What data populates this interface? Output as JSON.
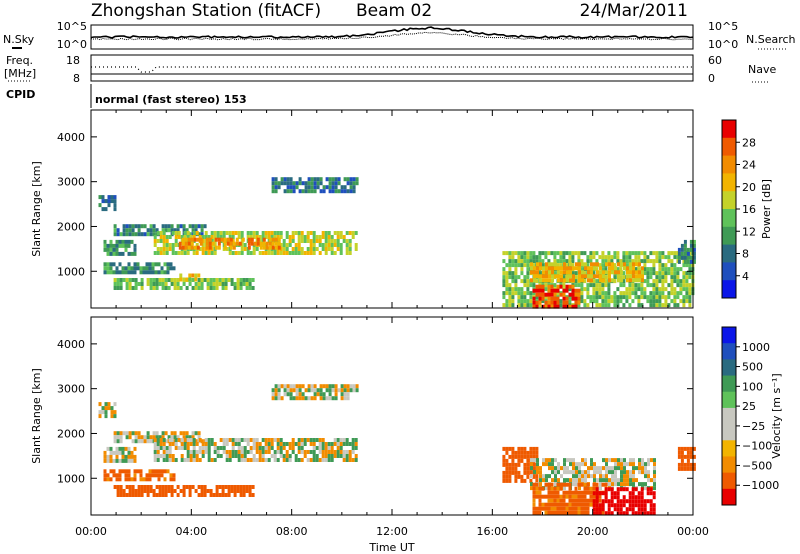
{
  "header": {
    "station": "Zhongshan Station (fitACF)",
    "beam": "Beam 02",
    "date": "24/Mar/2011"
  },
  "panel_labels": {
    "nsky": "N.Sky",
    "nsearch": "N.Search",
    "freq_line1": "Freq.",
    "freq_line2": "[MHz]",
    "nave": "Nave",
    "cpid": "CPID",
    "cpid_text": "normal (fast stereo) 153"
  },
  "noise_axis": {
    "left_top": "10^5",
    "left_bottom": "10^0",
    "right_top": "10^5",
    "right_bottom": "10^0"
  },
  "freq_axis": {
    "left_top": "18",
    "left_bottom": "8",
    "right_top": "60",
    "right_bottom": "0"
  },
  "chart_data": [
    {
      "type": "heatmap",
      "title": "",
      "xlabel": "Time UT",
      "ylabel": "Slant Range [km]",
      "x_ticks": [
        "00:00",
        "04:00",
        "08:00",
        "12:00",
        "16:00",
        "20:00",
        "00:00"
      ],
      "xlim_hours": [
        0,
        24
      ],
      "ylim_km": [
        180,
        4600
      ],
      "y_ticks": [
        1000,
        2000,
        3000,
        4000
      ],
      "colorbar": {
        "label": "Power [dB]",
        "ticks": [
          "4",
          "8",
          "12",
          "16",
          "20",
          "24",
          "28"
        ],
        "range": [
          0,
          30
        ],
        "colors": [
          "#0b16e8",
          "#1f4fbd",
          "#2a6b80",
          "#3f9a55",
          "#5fc25a",
          "#c4d22a",
          "#f2b400",
          "#f28c00",
          "#ef5a00",
          "#e80000"
        ]
      },
      "regions": [
        {
          "t": [
            0.3,
            0.9
          ],
          "r": [
            2400,
            2700
          ],
          "v": 8
        },
        {
          "t": [
            0.5,
            1.8
          ],
          "r": [
            1400,
            1700
          ],
          "v": 10
        },
        {
          "t": [
            0.9,
            4.5
          ],
          "r": [
            1850,
            2050
          ],
          "v": 9
        },
        {
          "t": [
            2.5,
            10.6
          ],
          "r": [
            1450,
            1900
          ],
          "v": 16
        },
        {
          "t": [
            3.5,
            7.5
          ],
          "r": [
            1550,
            1750
          ],
          "v": 22
        },
        {
          "t": [
            0.5,
            3.3
          ],
          "r": [
            950,
            1200
          ],
          "v": 10
        },
        {
          "t": [
            0.9,
            6.5
          ],
          "r": [
            600,
            850
          ],
          "v": 14
        },
        {
          "t": [
            3.4,
            4.3
          ],
          "r": [
            820,
            950
          ],
          "v": 18
        },
        {
          "t": [
            7.2,
            10.6
          ],
          "r": [
            2750,
            3100
          ],
          "v": 8
        },
        {
          "t": [
            16.4,
            24.0
          ],
          "r": [
            200,
            1450
          ],
          "v": 14
        },
        {
          "t": [
            17.5,
            22.0
          ],
          "r": [
            800,
            1200
          ],
          "v": 20
        },
        {
          "t": [
            17.6,
            19.4
          ],
          "r": [
            200,
            700
          ],
          "v": 26
        },
        {
          "t": [
            23.4,
            24.0
          ],
          "r": [
            1200,
            1700
          ],
          "v": 9
        }
      ]
    },
    {
      "type": "heatmap",
      "title": "",
      "xlabel": "Time UT",
      "ylabel": "Slant Range [km]",
      "x_ticks": [
        "00:00",
        "04:00",
        "08:00",
        "12:00",
        "16:00",
        "20:00",
        "00:00"
      ],
      "xlim_hours": [
        0,
        24
      ],
      "ylim_km": [
        180,
        4600
      ],
      "y_ticks": [
        1000,
        2000,
        3000,
        4000
      ],
      "colorbar": {
        "label": "Velocity [m s⁻¹]",
        "ticks": [
          "1000",
          "500",
          "100",
          "25",
          "−25",
          "−100",
          "−500",
          "−1000"
        ],
        "range": [
          -1000,
          1000
        ],
        "colors": [
          "#e80000",
          "#ef5a00",
          "#f28c00",
          "#f2b400",
          "#c8c8c0",
          "#c8c8c0",
          "#5fc25a",
          "#3f9a55",
          "#2a6b80",
          "#1f4fbd",
          "#0b16e8"
        ]
      },
      "regions": [
        {
          "t": [
            0.3,
            0.9
          ],
          "r": [
            2400,
            2700
          ],
          "v": 0
        },
        {
          "t": [
            0.5,
            1.8
          ],
          "r": [
            1400,
            1700
          ],
          "v": 0
        },
        {
          "t": [
            0.9,
            4.5
          ],
          "r": [
            1850,
            2050
          ],
          "v": 0
        },
        {
          "t": [
            2.5,
            10.6
          ],
          "r": [
            1450,
            1900
          ],
          "v": 0
        },
        {
          "t": [
            0.5,
            3.3
          ],
          "r": [
            950,
            1200
          ],
          "v": -150
        },
        {
          "t": [
            0.9,
            6.5
          ],
          "r": [
            600,
            850
          ],
          "v": -200
        },
        {
          "t": [
            7.2,
            10.6
          ],
          "r": [
            2750,
            3100
          ],
          "v": 0
        },
        {
          "t": [
            16.4,
            17.8
          ],
          "r": [
            900,
            1700
          ],
          "v": -400
        },
        {
          "t": [
            17.5,
            22.5
          ],
          "r": [
            800,
            1450
          ],
          "v": 0
        },
        {
          "t": [
            17.6,
            20.5
          ],
          "r": [
            250,
            900
          ],
          "v": -150
        },
        {
          "t": [
            20.0,
            22.5
          ],
          "r": [
            250,
            800
          ],
          "v": -600
        },
        {
          "t": [
            23.4,
            24.0
          ],
          "r": [
            1200,
            1700
          ],
          "v": -200
        }
      ]
    }
  ]
}
